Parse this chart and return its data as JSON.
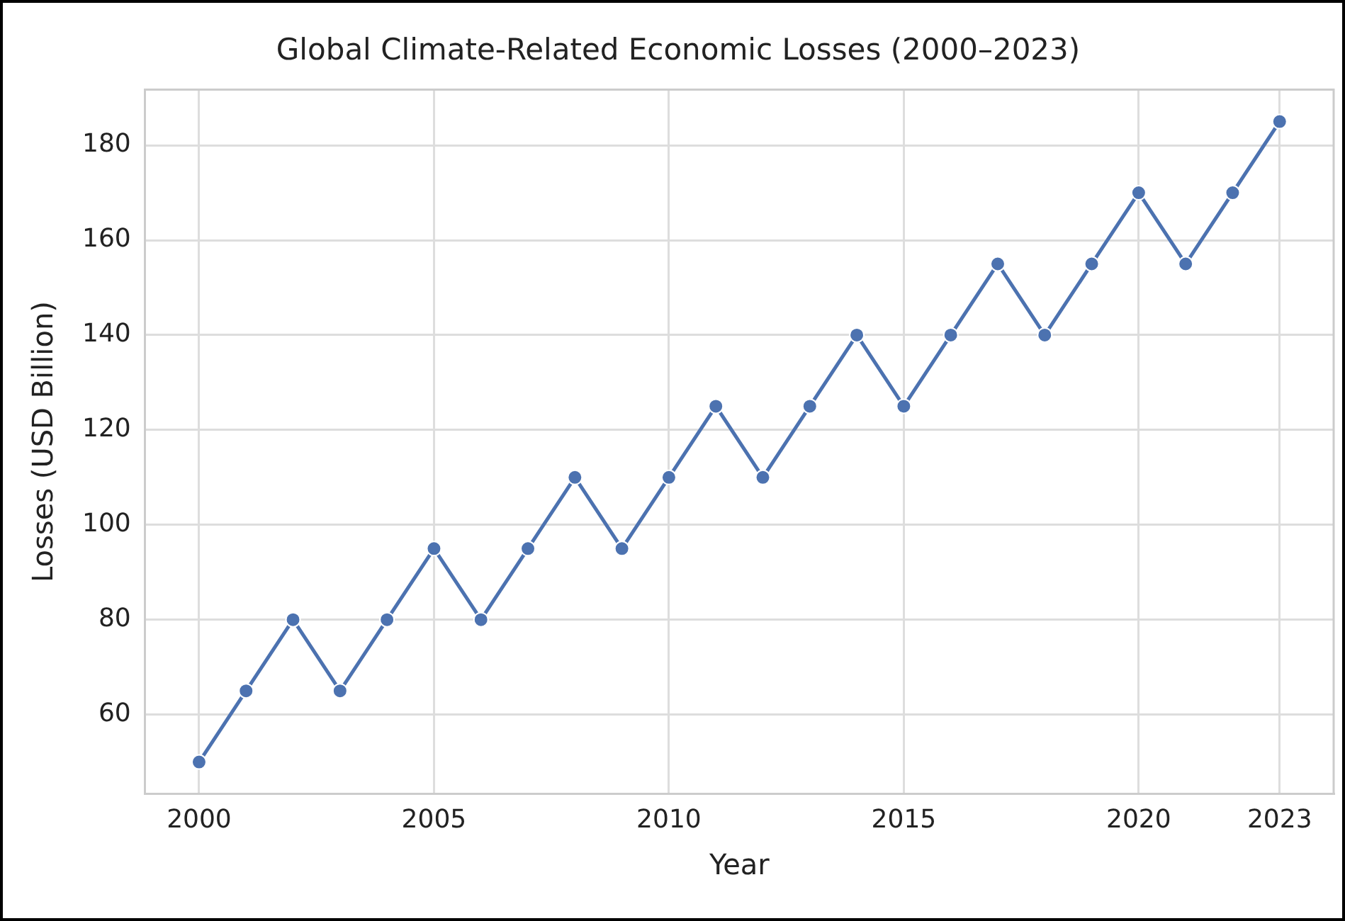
{
  "chart_data": {
    "type": "line",
    "title": "Global Climate-Related Economic Losses (2000–2023)",
    "xlabel": "Year",
    "ylabel": "Losses (USD Billion)",
    "x": [
      2000,
      2001,
      2002,
      2003,
      2004,
      2005,
      2006,
      2007,
      2008,
      2009,
      2010,
      2011,
      2012,
      2013,
      2014,
      2015,
      2016,
      2017,
      2018,
      2019,
      2020,
      2021,
      2022,
      2023
    ],
    "series": [
      {
        "color": "#4c72b0",
        "values": [
          50,
          65,
          80,
          65,
          80,
          95,
          80,
          95,
          110,
          95,
          110,
          125,
          110,
          125,
          140,
          125,
          140,
          155,
          140,
          155,
          170,
          155,
          170,
          185
        ]
      }
    ],
    "xlim": [
      1998.85,
      2024.15
    ],
    "xticks": [
      2000,
      2005,
      2010,
      2015,
      2020,
      2023
    ],
    "ylim": [
      43.25,
      191.75
    ],
    "yticks": [
      60,
      80,
      100,
      120,
      140,
      160,
      180
    ],
    "grid": true,
    "legend": false,
    "marker": "circle",
    "line_style": "solid"
  }
}
